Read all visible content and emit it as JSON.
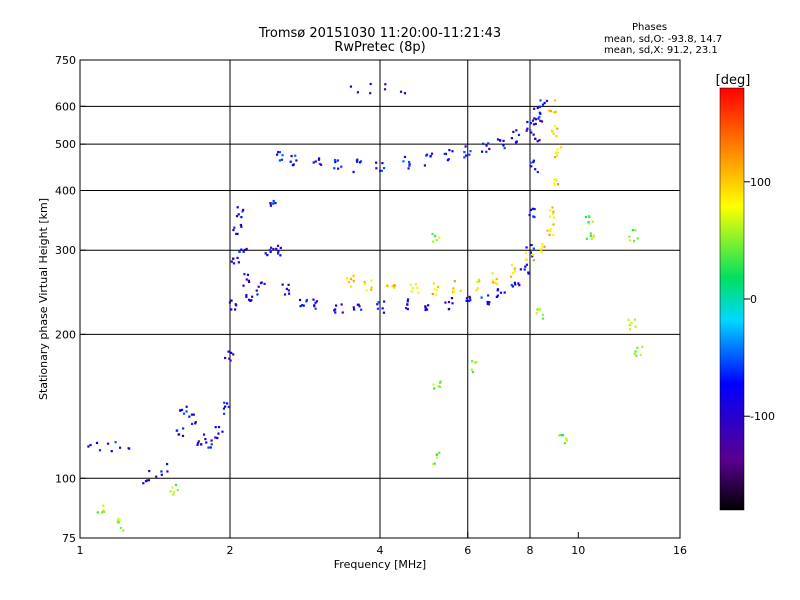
{
  "header": {
    "title_line1": "Tromsø 20151030 11:20:00-11:21:43",
    "title_line2": "RwPretec (8p)",
    "phases_label": "Phases",
    "phases_o": "mean, sd,O: -93.8, 14.7",
    "phases_x": "mean, sd,X:  91.2, 23.1"
  },
  "colorbar": {
    "label": "[deg]",
    "ticks": [
      {
        "value": 100,
        "label": "100"
      },
      {
        "value": 0,
        "label": "0"
      },
      {
        "value": -100,
        "label": "-100"
      }
    ],
    "range": [
      -180,
      180
    ]
  },
  "chart_data": {
    "type": "scatter",
    "xlabel": "Frequency [MHz]",
    "ylabel": "Stationary phase Virtual Height [km]",
    "xscale": "log",
    "yscale": "log",
    "xlim": [
      1,
      16
    ],
    "ylim": [
      75,
      750
    ],
    "xticks": [
      1,
      2,
      4,
      6,
      8,
      10,
      16
    ],
    "xgrid": [
      2,
      4,
      6,
      8
    ],
    "yticks": [
      75,
      100,
      200,
      300,
      400,
      500,
      600,
      750
    ],
    "ygrid": [
      100,
      200,
      300,
      400,
      500,
      600
    ],
    "grid": true,
    "series": [
      {
        "points": [
          [
            1.05,
            117
          ],
          [
            1.1,
            116
          ],
          [
            1.15,
            117
          ],
          [
            1.2,
            116
          ],
          [
            1.27,
            116
          ],
          [
            1.33,
            99
          ],
          [
            1.36,
            100
          ],
          [
            1.4,
            101
          ],
          [
            1.45,
            104
          ],
          [
            1.5,
            106
          ]
        ],
        "phase": -95
      },
      {
        "points": [
          [
            1.58,
            124
          ],
          [
            1.62,
            140
          ],
          [
            1.68,
            133
          ],
          [
            1.75,
            121
          ],
          [
            1.82,
            119
          ],
          [
            1.9,
            125
          ],
          [
            1.95,
            140
          ],
          [
            1.99,
            180
          ],
          [
            2.02,
            230
          ],
          [
            2.05,
            290
          ],
          [
            2.07,
            330
          ],
          [
            2.1,
            360
          ],
          [
            2.12,
            300
          ],
          [
            2.15,
            260
          ],
          [
            2.2,
            240
          ],
          [
            2.3,
            250
          ],
          [
            2.4,
            300
          ],
          [
            2.45,
            380
          ],
          [
            2.5,
            300
          ],
          [
            2.6,
            250
          ],
          [
            2.8,
            232
          ],
          [
            3.0,
            230
          ],
          [
            3.3,
            229
          ],
          [
            3.6,
            228
          ],
          [
            4.0,
            229
          ],
          [
            4.5,
            230
          ],
          [
            5.0,
            231
          ],
          [
            5.5,
            232
          ],
          [
            6.0,
            233
          ],
          [
            6.5,
            237
          ],
          [
            7.0,
            244
          ],
          [
            7.5,
            258
          ],
          [
            7.8,
            275
          ],
          [
            8.0,
            300
          ],
          [
            8.1,
            360
          ],
          [
            8.15,
            450
          ],
          [
            8.2,
            520
          ],
          [
            8.3,
            560
          ]
        ],
        "phase": -98
      },
      {
        "points": [
          [
            2.5,
            475
          ],
          [
            2.7,
            462
          ],
          [
            3.0,
            455
          ],
          [
            3.3,
            452
          ],
          [
            3.6,
            451
          ],
          [
            4.0,
            453
          ],
          [
            4.5,
            458
          ],
          [
            5.0,
            465
          ],
          [
            5.5,
            475
          ],
          [
            6.0,
            482
          ],
          [
            6.5,
            490
          ],
          [
            7.0,
            500
          ],
          [
            7.5,
            520
          ],
          [
            8.0,
            545
          ],
          [
            8.3,
            580
          ],
          [
            8.5,
            610
          ]
        ],
        "phase": -92
      },
      {
        "points": [
          [
            3.5,
            258
          ],
          [
            3.8,
            253
          ],
          [
            4.2,
            250
          ],
          [
            4.7,
            249
          ],
          [
            5.2,
            250
          ],
          [
            5.7,
            252
          ],
          [
            6.2,
            255
          ],
          [
            6.8,
            262
          ],
          [
            7.4,
            272
          ],
          [
            8.0,
            288
          ],
          [
            8.5,
            305
          ],
          [
            8.8,
            330
          ],
          [
            8.9,
            360
          ],
          [
            9.0,
            420
          ],
          [
            9.05,
            480
          ],
          [
            9.0,
            530
          ],
          [
            8.9,
            600
          ]
        ],
        "phase": 95
      },
      {
        "points": [
          [
            3.55,
            655
          ],
          [
            3.8,
            655
          ],
          [
            4.1,
            656
          ],
          [
            4.4,
            658
          ]
        ],
        "phase": -105
      },
      {
        "points": [
          [
            5.2,
            322
          ],
          [
            5.2,
            110
          ],
          [
            5.2,
            155
          ],
          [
            6.2,
            172
          ],
          [
            8.4,
            222
          ],
          [
            10.5,
            350
          ],
          [
            10.6,
            320
          ],
          [
            12.9,
            323
          ],
          [
            12.8,
            210
          ],
          [
            13.2,
            185
          ],
          [
            9.3,
            120
          ],
          [
            1.55,
            95
          ],
          [
            1.1,
            87
          ],
          [
            1.2,
            80
          ]
        ],
        "phase": 40
      }
    ]
  }
}
